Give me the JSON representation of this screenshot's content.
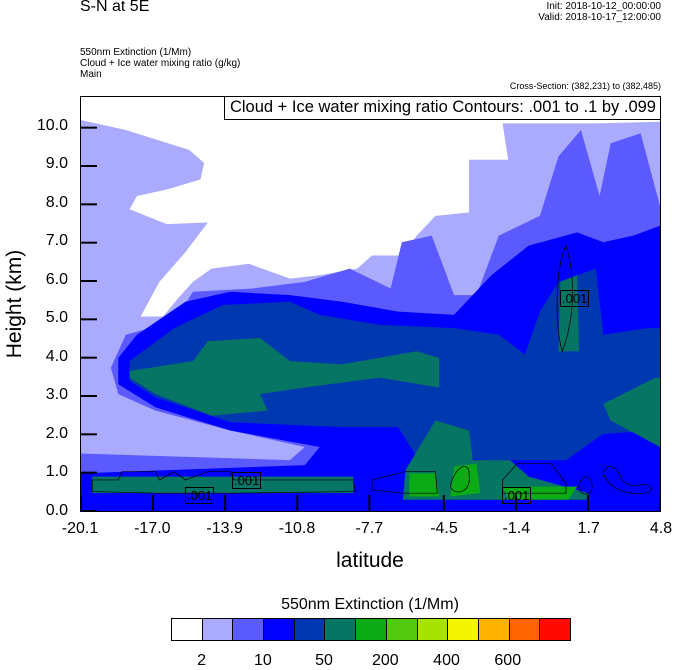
{
  "header": {
    "title": "S-N at 5E",
    "init": "Init: 2018-10-12_00:00:00",
    "valid": "Valid: 2018-10-17_12:00:00",
    "subtitles": [
      "550nm Extinction   (1/Mm)",
      "Cloud + Ice water mixing ratio   (g/kg)",
      "Main"
    ],
    "cross_section": "Cross-Section: (382,231) to (382,485)"
  },
  "chart_data": {
    "type": "heatmap",
    "title": "Cloud + Ice water mixing ratio Contours: .001 to .1 by .099",
    "xlabel": "latitude",
    "ylabel": "Height (km)",
    "xlim": [
      -20.1,
      4.8
    ],
    "ylim": [
      0,
      10.8
    ],
    "xticks": [
      -20.1,
      -17.0,
      -13.9,
      -10.8,
      -7.7,
      -4.5,
      -1.4,
      1.7,
      4.8
    ],
    "xtick_labels": [
      "-20.1",
      "-17.0",
      "-13.9",
      "-10.8",
      "-7.7",
      "-4.5",
      "-1.4",
      "1.7",
      "4.8"
    ],
    "yticks": [
      0,
      1,
      2,
      3,
      4,
      5,
      6,
      7,
      8,
      9,
      10
    ],
    "ytick_labels": [
      "0.0",
      "1.0",
      "2.0",
      "3.0",
      "4.0",
      "5.0",
      "6.0",
      "7.0",
      "8.0",
      "9.0",
      "10.0"
    ],
    "contour_labels": [
      ".001",
      ".001",
      ".001",
      ".001"
    ],
    "colorbar": {
      "title": "550nm Extinction  (1/Mm)",
      "colors": [
        "#ffffff",
        "#aaaaff",
        "#5a5aff",
        "#0000ff",
        "#0038b0",
        "#077563",
        "#0aab14",
        "#52c80f",
        "#a6e300",
        "#f5f500",
        "#ffb300",
        "#ff6400",
        "#ff0a00"
      ],
      "labels": [
        "2",
        "10",
        "50",
        "200",
        "400",
        "600"
      ],
      "label_boundaries": [
        1,
        3,
        5,
        7,
        9,
        11
      ]
    }
  }
}
